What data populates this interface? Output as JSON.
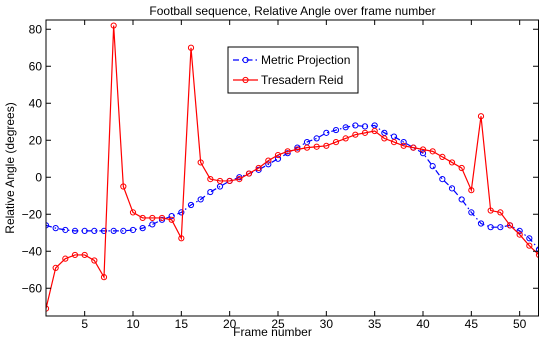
{
  "chart_data": {
    "type": "line",
    "title": "Football sequence, Relative Angle over frame number",
    "xlabel": "Frame number",
    "ylabel": "Relative Angle (degrees)",
    "xlim": [
      1,
      52
    ],
    "ylim": [
      -75,
      85
    ],
    "xticks": [
      5,
      10,
      15,
      20,
      25,
      30,
      35,
      40,
      45,
      50
    ],
    "yticks": [
      -60,
      -40,
      -20,
      0,
      20,
      40,
      60,
      80
    ],
    "grid": false,
    "legend_position": "top-center",
    "series": [
      {
        "name": "Metric Projection",
        "color": "#0000ff",
        "line_style": "dash-dot",
        "marker": "circle",
        "x": [
          1,
          2,
          3,
          4,
          5,
          6,
          7,
          8,
          9,
          10,
          11,
          12,
          13,
          14,
          15,
          16,
          17,
          18,
          19,
          20,
          21,
          22,
          23,
          24,
          25,
          26,
          27,
          28,
          29,
          30,
          31,
          32,
          33,
          34,
          35,
          36,
          37,
          38,
          39,
          40,
          41,
          42,
          43,
          44,
          45,
          46,
          47,
          48,
          49,
          50,
          51,
          52
        ],
        "values": [
          -26,
          -27.5,
          -28.5,
          -29,
          -29,
          -29,
          -29,
          -29,
          -29,
          -28.5,
          -27.5,
          -25.5,
          -23,
          -21,
          -19,
          -15,
          -12,
          -8,
          -5,
          -2,
          0,
          2,
          4,
          7,
          10,
          13,
          16,
          19,
          21,
          24,
          25.5,
          27,
          28,
          27.5,
          28,
          24,
          22,
          19,
          16,
          13,
          6,
          -1,
          -6,
          -12,
          -19,
          -25,
          -27,
          -27,
          -26,
          -29,
          -33,
          -39
        ]
      },
      {
        "name": "Tresadern Reid",
        "color": "#ff0000",
        "line_style": "solid",
        "marker": "circle",
        "x": [
          1,
          2,
          3,
          4,
          5,
          6,
          7,
          8,
          9,
          10,
          11,
          12,
          13,
          14,
          15,
          16,
          17,
          18,
          19,
          20,
          21,
          22,
          23,
          24,
          25,
          26,
          27,
          28,
          29,
          30,
          31,
          32,
          33,
          34,
          35,
          36,
          37,
          38,
          39,
          40,
          41,
          42,
          43,
          44,
          45,
          46,
          47,
          48,
          49,
          50,
          51,
          52
        ],
        "values": [
          -71,
          -49,
          -44,
          -42,
          -42,
          -45,
          -54,
          82,
          -5,
          -19,
          -22,
          -22,
          -22,
          -23,
          -33,
          70,
          8,
          -1,
          -2,
          -2,
          -1,
          2,
          5,
          9,
          12,
          14,
          15,
          16,
          16.5,
          17,
          19,
          21,
          23,
          24,
          25,
          21,
          19,
          17,
          16,
          15,
          14,
          11,
          8,
          5,
          -7,
          33,
          -18,
          -19,
          -26,
          -31,
          -37,
          -42
        ]
      }
    ]
  }
}
